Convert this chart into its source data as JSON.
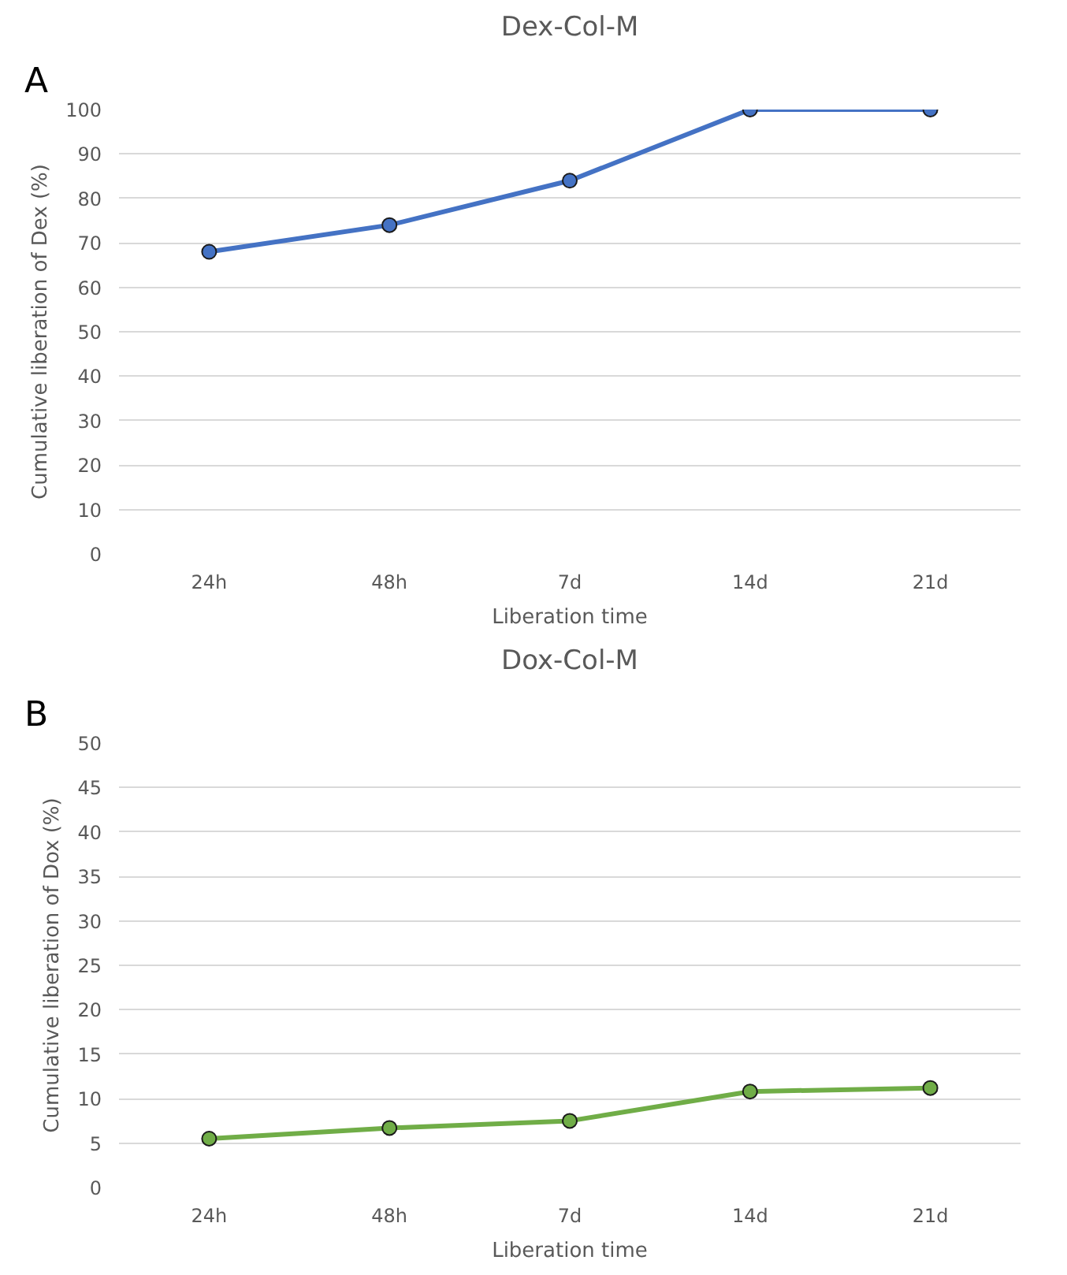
{
  "chart_data": [
    {
      "type": "line",
      "title": "Dex-Col-M",
      "xlabel": "Liberation time",
      "ylabel": "Cumulative liberation of Dex (%)",
      "annotations": [
        "A"
      ],
      "categories": [
        "24h",
        "48h",
        "7d",
        "14d",
        "21d"
      ],
      "series": [
        {
          "color": "#4472c4",
          "values": [
            68,
            74,
            84,
            100,
            100
          ]
        }
      ],
      "ylim": [
        0,
        100
      ],
      "yticks": [
        0,
        10,
        20,
        30,
        40,
        50,
        60,
        70,
        80,
        90,
        100
      ],
      "grid": "y",
      "marker": "circle",
      "line_style": "solid"
    },
    {
      "type": "line",
      "title": "Dox-Col-M",
      "xlabel": "Liberation time",
      "ylabel": "Cumulative liberation of Dox (%)",
      "annotations": [
        "B"
      ],
      "categories": [
        "24h",
        "48h",
        "7d",
        "14d",
        "21d"
      ],
      "series": [
        {
          "color": "#70ad47",
          "values": [
            5.5,
            6.7,
            7.5,
            10.8,
            11.2
          ]
        }
      ],
      "ylim": [
        0,
        50
      ],
      "yticks": [
        0,
        5,
        10,
        15,
        20,
        25,
        30,
        35,
        40,
        45,
        50
      ],
      "grid": "y",
      "marker": "circle",
      "line_style": "solid"
    }
  ]
}
